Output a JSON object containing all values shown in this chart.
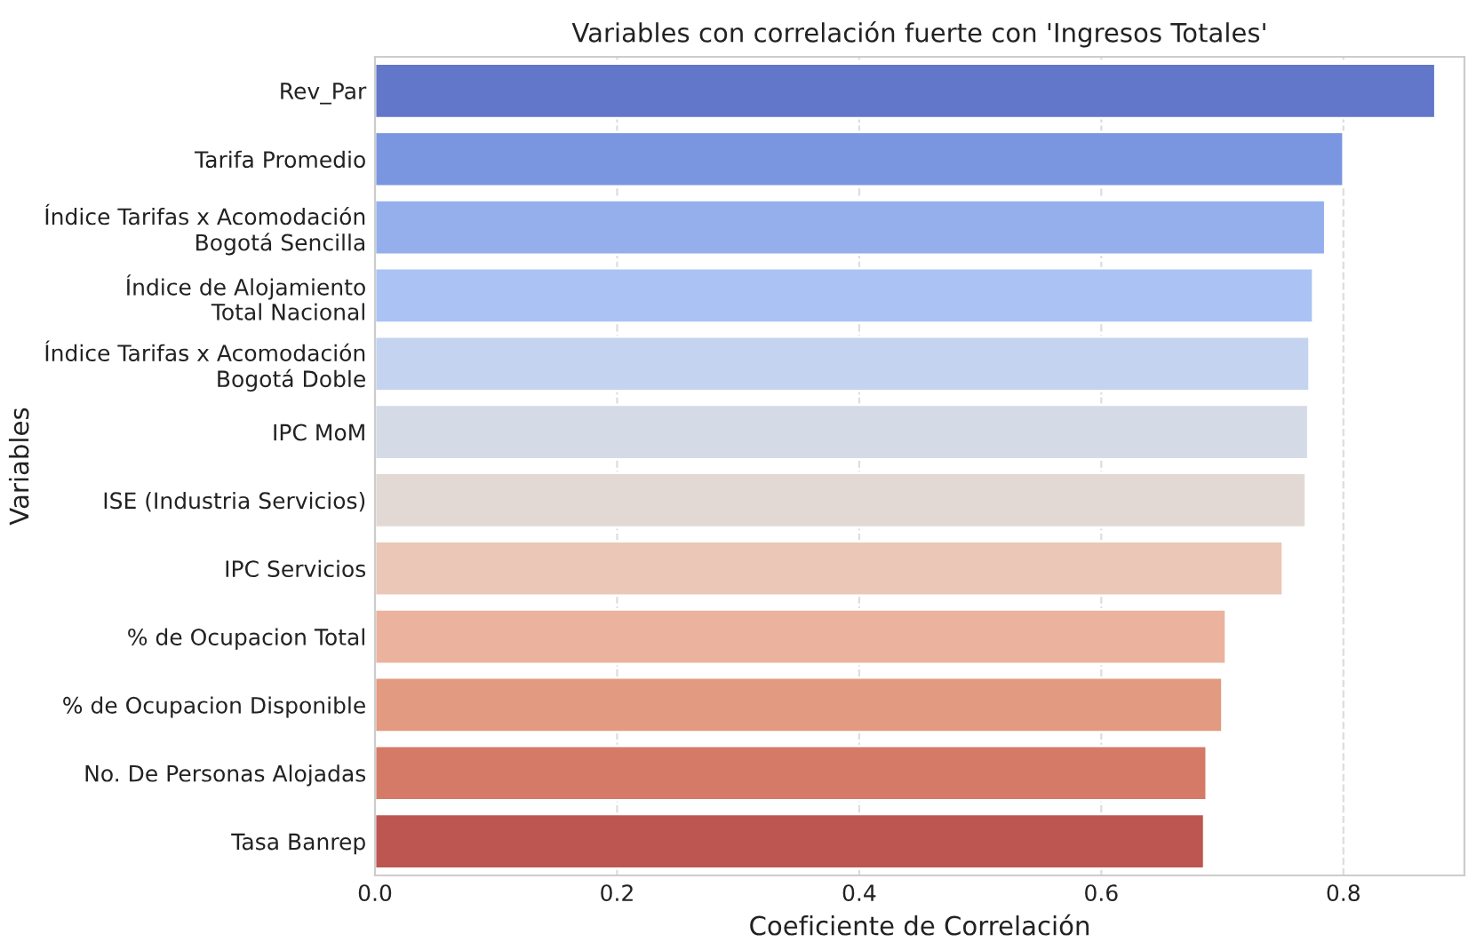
{
  "chart_data": {
    "type": "bar",
    "orientation": "horizontal",
    "title": "Variables con correlación fuerte con 'Ingresos Totales'",
    "xlabel": "Coeficiente de Correlación",
    "ylabel": "Variables",
    "categories": [
      "Rev_Par",
      "Tarifa Promedio",
      "Índice Tarifas x Acomodación\nBogotá Sencilla",
      "Índice de Alojamiento\nTotal Nacional",
      "Índice Tarifas x Acomodación\nBogotá Doble",
      "IPC MoM",
      "ISE (Industria Servicios)",
      "IPC Servicios",
      "% de Ocupacion Total",
      "% de Ocupacion Disponible",
      "No. De Personas Alojadas",
      "Tasa Banrep"
    ],
    "values": [
      0.876,
      0.8,
      0.785,
      0.775,
      0.772,
      0.771,
      0.769,
      0.75,
      0.703,
      0.7,
      0.687,
      0.685
    ],
    "colors": [
      "#6277c9",
      "#7a96e0",
      "#94afec",
      "#aac3f4",
      "#c4d3ef",
      "#d4dbe6",
      "#e3d9d4",
      "#eac7b7",
      "#ebb39d",
      "#e29a81",
      "#d47a67",
      "#bd5650"
    ],
    "xlim": [
      0,
      0.9
    ],
    "xticks": [
      {
        "value": 0,
        "label": "0.0"
      },
      0.2,
      0.4,
      0.6,
      0.8
    ],
    "grid": "x"
  }
}
